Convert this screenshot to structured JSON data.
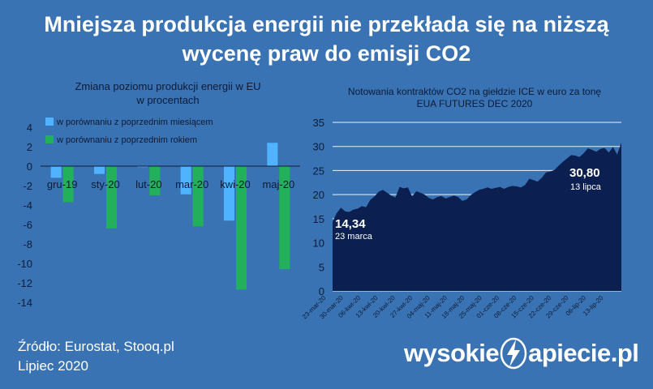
{
  "title_line1": "Mniejsza produkcja energii nie przekłada się na niższą",
  "title_line2": "wycenę praw do emisji CO2",
  "source": "Źródło: Eurostat, Stooq.pl",
  "date": "Lipiec 2020",
  "logo_left": "wysokie",
  "logo_right": "apiecie.pl",
  "colors": {
    "background": "#3a73b4",
    "monthly": "#4fb3ff",
    "yearly": "#22b05a",
    "area": "#0b2050"
  },
  "chart_data": [
    {
      "type": "bar",
      "title_line1": "Zmiana poziomu produkcji energii w EU",
      "title_line2": "w procentach",
      "categories": [
        "gru-19",
        "sty-20",
        "lut-20",
        "mar-20",
        "kwi-20",
        "maj-20"
      ],
      "series": [
        {
          "name": "w porównaniu z poprzednim miesiącem",
          "values": [
            -1.2,
            -0.8,
            -0.1,
            -2.9,
            -5.6,
            2.4
          ]
        },
        {
          "name": "w porównaniu z poprzednim rokiem",
          "values": [
            -3.7,
            -6.4,
            -3.0,
            -6.2,
            -12.7,
            -10.6
          ]
        }
      ],
      "ylim": [
        -14,
        4
      ],
      "yticks": [
        4,
        2,
        0,
        -2,
        -4,
        -6,
        -8,
        -10,
        -12,
        -14
      ],
      "legend": "top-left"
    },
    {
      "type": "area",
      "title_line1": "Notowania kontraktów CO2 na giełdzie ICE w euro za tonę",
      "title_line2": "EUA FUTURES DEC 2020",
      "ylim": [
        0,
        35
      ],
      "yticks": [
        0,
        5,
        10,
        15,
        20,
        25,
        30,
        35
      ],
      "grid": true,
      "x_labels": [
        "23-mar-20",
        "30-mar-20",
        "06-kwi-20",
        "13-kwi-20",
        "20-kwi-20",
        "27-kwi-20",
        "04-maj-20",
        "11-maj-20",
        "18-maj-20",
        "25-maj-20",
        "01-cze-20",
        "08-cze-20",
        "15-cze-20",
        "22-cze-20",
        "29-cze-20",
        "06-lip-20",
        "13-lip-20"
      ],
      "values": [
        14.34,
        16.2,
        17.3,
        16.5,
        16.4,
        16.9,
        17.1,
        17.6,
        17.4,
        18.9,
        19.6,
        20.6,
        21.0,
        20.4,
        19.8,
        19.4,
        21.6,
        21.3,
        21.5,
        19.6,
        20.7,
        20.4,
        20.0,
        19.3,
        19.0,
        19.5,
        19.7,
        19.2,
        19.5,
        19.8,
        19.5,
        18.7,
        19.0,
        19.9,
        20.5,
        21.0,
        21.2,
        21.5,
        21.2,
        21.4,
        21.6,
        21.2,
        21.6,
        21.8,
        21.7,
        21.5,
        22.0,
        23.3,
        23.0,
        22.7,
        23.5,
        24.6,
        24.8,
        25.1,
        26.0,
        26.8,
        27.5,
        28.2,
        28.1,
        27.8,
        28.6,
        29.6,
        29.3,
        28.9,
        29.5,
        29.7,
        28.7,
        29.9,
        28.3,
        30.8
      ],
      "annotations": [
        {
          "value": "14,34",
          "label": "23 marca"
        },
        {
          "value": "30,80",
          "label": "13 lipca"
        }
      ]
    }
  ]
}
